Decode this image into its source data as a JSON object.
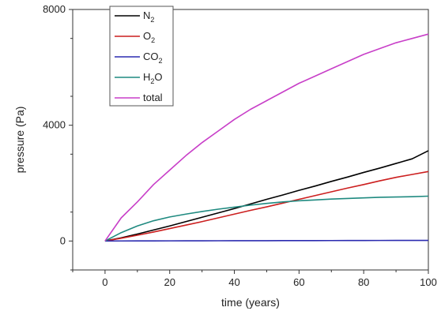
{
  "chart_data": {
    "type": "line",
    "title": "",
    "xlabel": "time (years)",
    "ylabel": "pressure (Pa)",
    "xlim": [
      -10,
      100
    ],
    "ylim": [
      -1000,
      8000
    ],
    "x_ticks": [
      0,
      20,
      40,
      60,
      80,
      100
    ],
    "y_ticks": [
      0,
      4000,
      8000
    ],
    "x_tick_labels": [
      "0",
      "20",
      "40",
      "60",
      "80",
      "100"
    ],
    "y_tick_labels": [
      "0",
      "4000",
      "8000"
    ],
    "grid": false,
    "legend_position": "top-left",
    "x": [
      0,
      5,
      10,
      15,
      20,
      25,
      30,
      35,
      40,
      45,
      50,
      55,
      60,
      65,
      70,
      75,
      80,
      85,
      90,
      95,
      100
    ],
    "series": [
      {
        "name": "N2",
        "label_parts": [
          "N",
          "2",
          ""
        ],
        "color": "#000000",
        "values": [
          0,
          110,
          240,
          380,
          520,
          670,
          820,
          970,
          1120,
          1280,
          1440,
          1590,
          1750,
          1900,
          2060,
          2210,
          2370,
          2520,
          2680,
          2840,
          3120
        ]
      },
      {
        "name": "O2",
        "label_parts": [
          "O",
          "2",
          ""
        ],
        "color": "#cc1f1f",
        "values": [
          0,
          95,
          200,
          310,
          430,
          550,
          670,
          800,
          930,
          1060,
          1180,
          1310,
          1440,
          1570,
          1700,
          1830,
          1950,
          2080,
          2200,
          2300,
          2400
        ]
      },
      {
        "name": "CO2",
        "label_parts": [
          "CO",
          "2",
          ""
        ],
        "color": "#2b2bb0",
        "values": [
          0,
          2,
          4,
          5,
          6,
          7,
          8,
          9,
          10,
          11,
          12,
          13,
          14,
          15,
          16,
          17,
          18,
          19,
          20,
          21,
          22
        ]
      },
      {
        "name": "H2O",
        "label_parts": [
          "H",
          "2",
          "O"
        ],
        "color": "#1f8a80",
        "values": [
          0,
          290,
          520,
          700,
          830,
          930,
          1020,
          1100,
          1170,
          1240,
          1300,
          1350,
          1390,
          1420,
          1450,
          1470,
          1490,
          1510,
          1520,
          1530,
          1550
        ]
      },
      {
        "name": "total",
        "label_parts": [
          "total",
          "",
          ""
        ],
        "color": "#c83fc8",
        "values": [
          0,
          800,
          1350,
          1950,
          2450,
          2950,
          3400,
          3800,
          4200,
          4550,
          4850,
          5150,
          5450,
          5700,
          5950,
          6200,
          6450,
          6650,
          6850,
          7000,
          7150
        ]
      }
    ]
  }
}
